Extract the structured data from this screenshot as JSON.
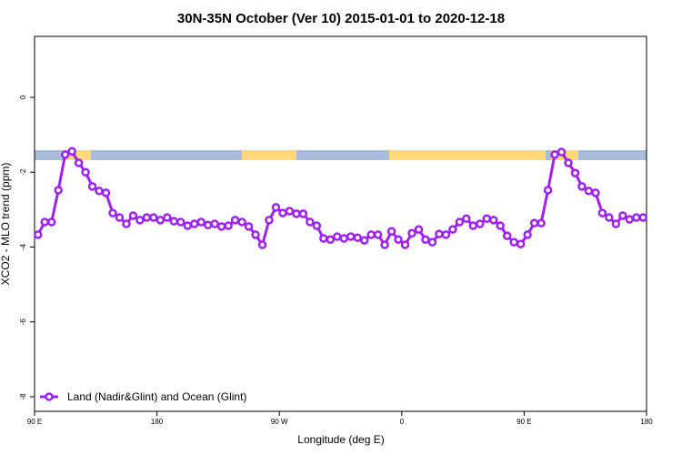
{
  "chart_data": {
    "type": "line",
    "title": "30N-35N October (Ver 10)   2015-01-01 to 2020-12-18",
    "xlabel": "Longitude (deg E)",
    "ylabel": "XCO2 - MLO trend (ppm)",
    "x": [
      92.5,
      97.5,
      102.5,
      107.5,
      112.5,
      117.5,
      122.5,
      127.5,
      132.5,
      137.5,
      142.5,
      147.5,
      152.5,
      157.5,
      162.5,
      167.5,
      172.5,
      177.5,
      182.5,
      187.5,
      192.5,
      197.5,
      202.5,
      207.5,
      212.5,
      217.5,
      222.5,
      227.5,
      232.5,
      237.5,
      242.5,
      247.5,
      252.5,
      257.5,
      262.5,
      267.5,
      272.5,
      277.5,
      282.5,
      287.5,
      292.5,
      297.5,
      302.5,
      307.5,
      312.5,
      317.5,
      322.5,
      327.5,
      332.5,
      337.5,
      342.5,
      347.5,
      352.5,
      357.5,
      362.5,
      367.5,
      372.5,
      377.5,
      382.5,
      387.5,
      392.5,
      397.5,
      402.5,
      407.5,
      412.5,
      417.5,
      422.5,
      427.5,
      432.5,
      437.5,
      442.5,
      447.5,
      452.5,
      457.5,
      462.5,
      467.5,
      472.5,
      477.5,
      482.5,
      487.5,
      492.5,
      497.5,
      502.5,
      507.5,
      512.5,
      517.5,
      522.5,
      527.5,
      532.5,
      537.5
    ],
    "series": [
      {
        "name": "Land (Nadir&Glint) and Ocean (Glint)",
        "color": "#a020f0",
        "values": [
          -3.67,
          -3.33,
          -3.33,
          -2.48,
          -1.53,
          -1.44,
          -1.75,
          -2.0,
          -2.38,
          -2.5,
          -2.55,
          -3.09,
          -3.21,
          -3.38,
          -3.16,
          -3.28,
          -3.21,
          -3.21,
          -3.28,
          -3.21,
          -3.31,
          -3.33,
          -3.43,
          -3.38,
          -3.33,
          -3.41,
          -3.38,
          -3.45,
          -3.43,
          -3.28,
          -3.33,
          -3.45,
          -3.67,
          -3.94,
          -3.28,
          -2.94,
          -3.09,
          -3.04,
          -3.11,
          -3.11,
          -3.33,
          -3.43,
          -3.77,
          -3.8,
          -3.72,
          -3.77,
          -3.72,
          -3.75,
          -3.82,
          -3.67,
          -3.67,
          -3.94,
          -3.58,
          -3.8,
          -3.94,
          -3.63,
          -3.53,
          -3.8,
          -3.87,
          -3.65,
          -3.67,
          -3.53,
          -3.33,
          -3.24,
          -3.43,
          -3.38,
          -3.24,
          -3.28,
          -3.43,
          -3.7,
          -3.87,
          -3.92,
          -3.67,
          -3.36,
          -3.36,
          -2.48,
          -1.53,
          -1.46,
          -1.75,
          -2.02,
          -2.38,
          -2.5,
          -2.55,
          -3.09,
          -3.21,
          -3.38,
          -3.16,
          -3.26,
          -3.21,
          -3.21
        ]
      }
    ],
    "xlim": [
      90,
      540
    ],
    "xticks": [
      {
        "value": 90,
        "label": "90 E"
      },
      180,
      {
        "value": 270,
        "label": "90 W"
      },
      {
        "value": 360,
        "label": "0"
      },
      {
        "value": 450,
        "label": "90 E"
      },
      180
    ],
    "ylim": [
      -8.39,
      1.63
    ],
    "yticks": [
      0,
      -2,
      -4,
      -6,
      -8
    ],
    "legend": "lower left"
  }
}
